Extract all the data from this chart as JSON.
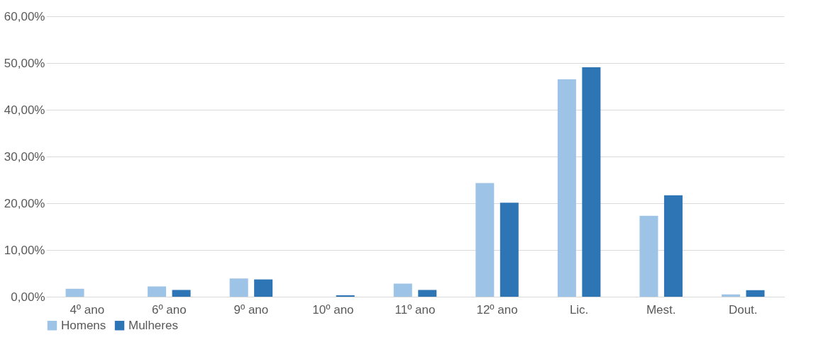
{
  "chart_data": {
    "type": "bar",
    "categories": [
      "4º ano",
      "6º ano",
      "9º ano",
      "10º ano",
      "11º ano",
      "12º ano",
      "Lic.",
      "Mest.",
      "Dout."
    ],
    "series": [
      {
        "name": "Homens",
        "color": "#9dc3e6",
        "values": [
          1.7,
          2.2,
          3.9,
          0,
          2.8,
          24.3,
          46.5,
          17.3,
          0.5
        ]
      },
      {
        "name": "Mulheres",
        "color": "#2e75b6",
        "values": [
          0,
          1.45,
          3.7,
          0.3,
          1.45,
          20.1,
          49.1,
          21.7,
          1.4
        ]
      }
    ],
    "ylim": [
      0,
      60
    ],
    "yticks": [
      {
        "value": 0,
        "label": "0,00%"
      },
      {
        "value": 10,
        "label": "10,00%"
      },
      {
        "value": 20,
        "label": "20,00%"
      },
      {
        "value": 30,
        "label": "30,00%"
      },
      {
        "value": 40,
        "label": "40,00%"
      },
      {
        "value": 50,
        "label": "50,00%"
      },
      {
        "value": 60,
        "label": "60,00%"
      }
    ],
    "grid": "y",
    "legend": "bottom"
  }
}
